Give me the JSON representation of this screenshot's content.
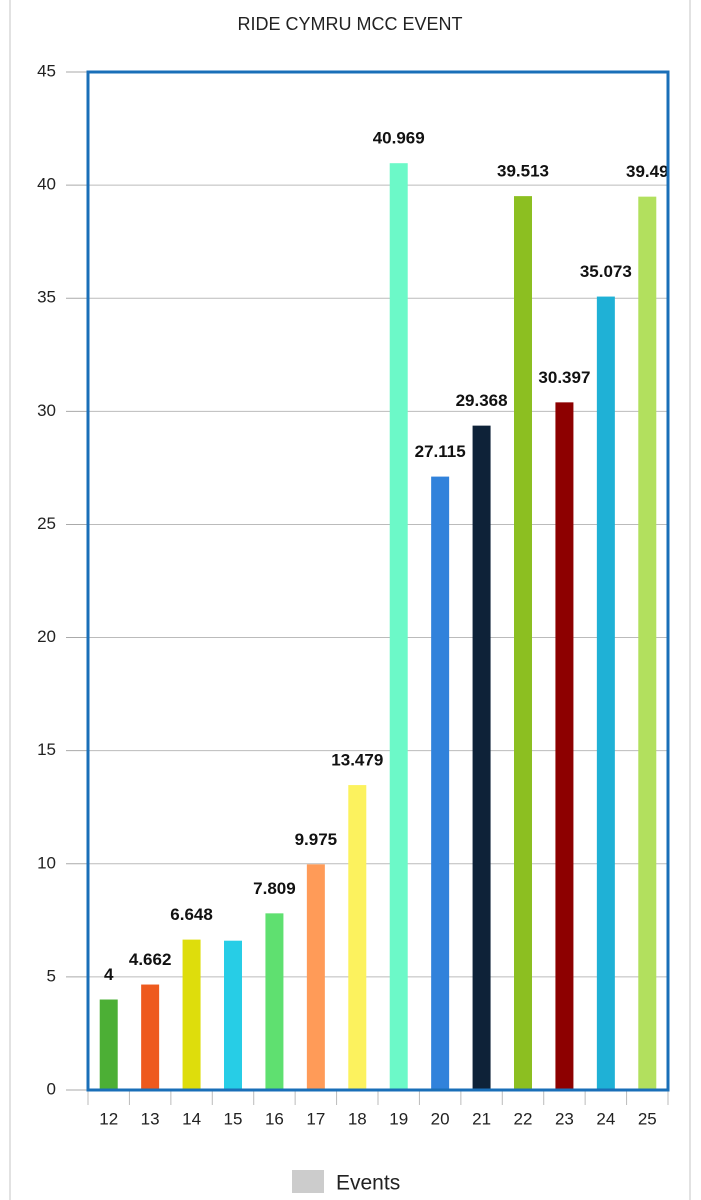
{
  "chart_data": {
    "type": "bar",
    "title": "RIDE CYMRU MCC EVENT",
    "categories": [
      "12",
      "13",
      "14",
      "15",
      "16",
      "17",
      "18",
      "19",
      "20",
      "21",
      "22",
      "23",
      "24",
      "25"
    ],
    "series": [
      {
        "name": "Events",
        "color": "#cccccc",
        "colors": [
          "#4caf35",
          "#ee5a1e",
          "#dedd0c",
          "#27cde6",
          "#5fe070",
          "#ff9b58",
          "#fcf25e",
          "#6cf9c8",
          "#3182db",
          "#0e2238",
          "#8cbf21",
          "#8d0000",
          "#1fb1d6",
          "#b2e05e"
        ],
        "values": [
          4,
          4.662,
          6.648,
          6.6,
          7.809,
          9.975,
          13.479,
          40.969,
          27.115,
          29.368,
          39.513,
          30.397,
          35.073,
          39.49
        ],
        "value_labels": [
          "4",
          "4.662",
          "6.648",
          null,
          "7.809",
          "9.975",
          "13.479",
          "40.969",
          "27.115",
          "29.368",
          "39.513",
          "30.397",
          "35.073",
          "39.49"
        ]
      }
    ],
    "ylim": [
      0,
      45
    ],
    "yticks": [
      0,
      5,
      10,
      15,
      20,
      25,
      30,
      35,
      40,
      45
    ],
    "grid": true,
    "legend": "bottom"
  }
}
